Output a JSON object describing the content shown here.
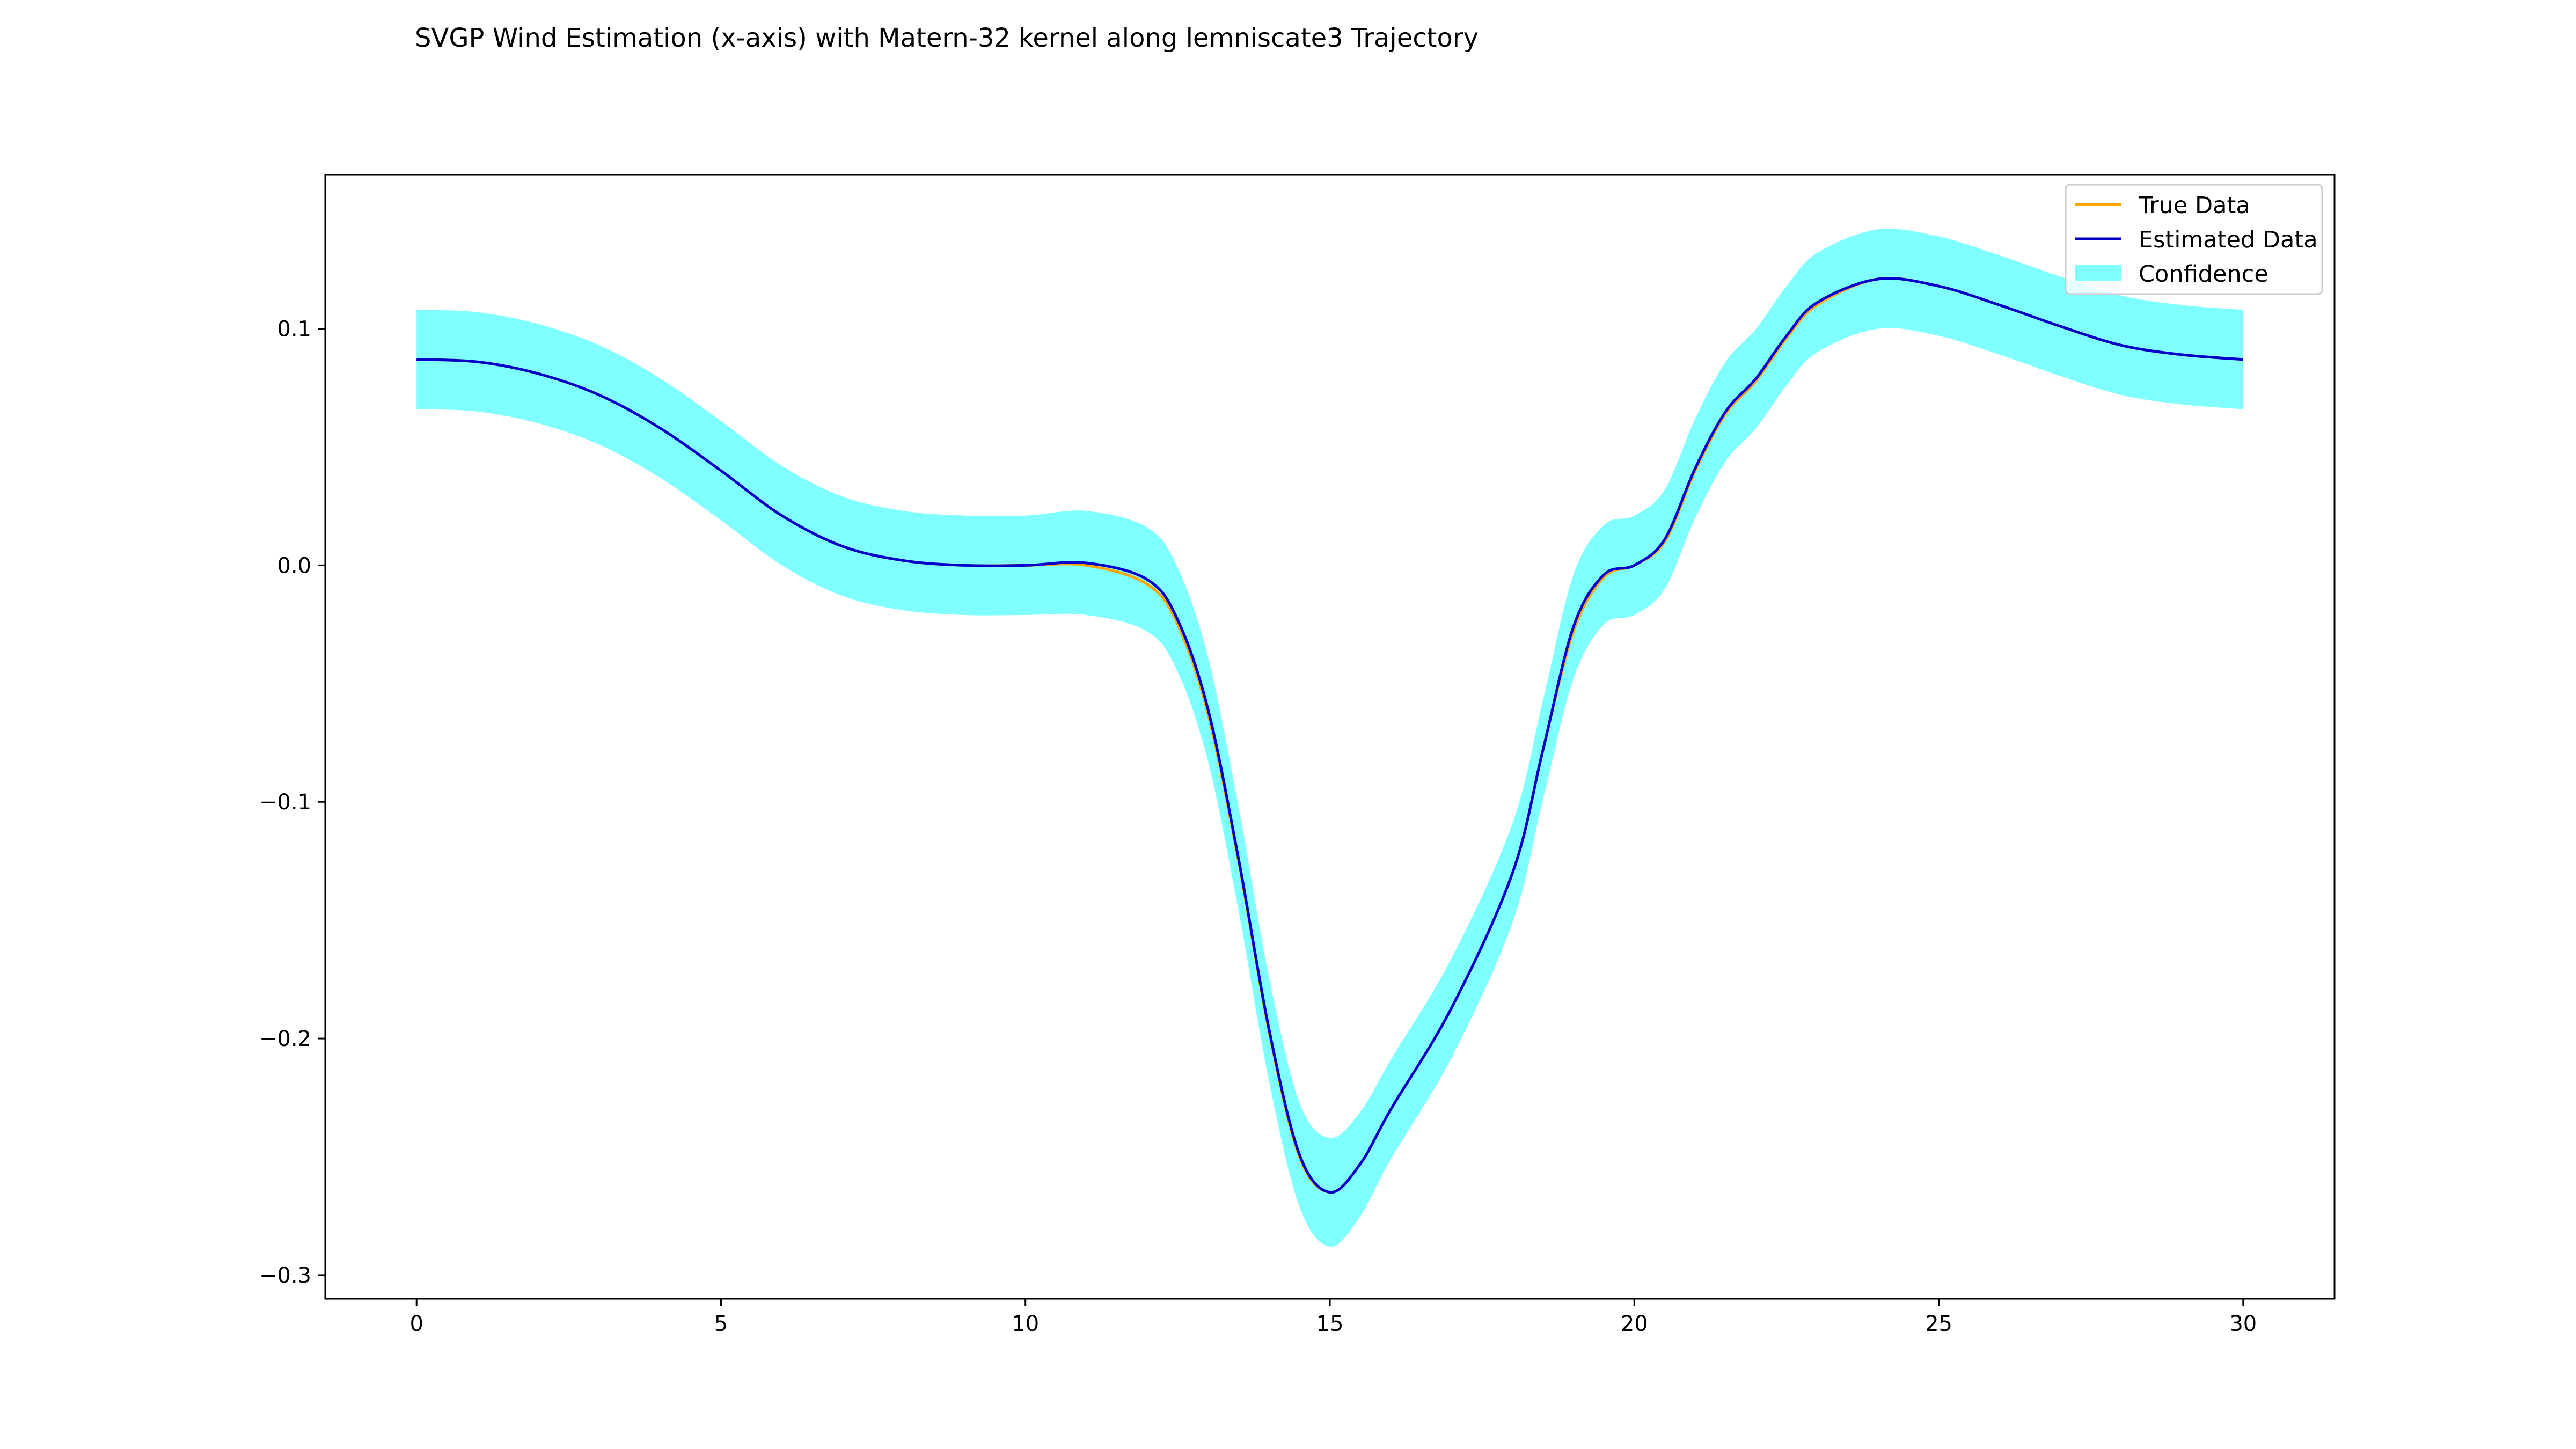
{
  "chart_data": {
    "type": "line",
    "title": "SVGP Wind Estimation (x-axis) with Matern-32 kernel along lemniscate3 Trajectory",
    "xlabel": "",
    "ylabel": "",
    "xlim": [
      -1.5,
      31.5
    ],
    "ylim": [
      -0.31,
      0.165
    ],
    "xticks": [
      0,
      5,
      10,
      15,
      20,
      25,
      30
    ],
    "xtick_labels": [
      "0",
      "5",
      "10",
      "15",
      "20",
      "25",
      "30"
    ],
    "yticks": [
      0.1,
      0.0,
      -0.1,
      -0.2,
      -0.3
    ],
    "ytick_labels": [
      "0.1",
      "0.0",
      "−0.1",
      "−0.2",
      "−0.3"
    ],
    "grid": false,
    "legend_position": "top-right",
    "x": [
      0,
      1,
      2,
      3,
      4,
      5,
      6,
      7,
      8,
      9,
      10,
      11,
      12,
      12.5,
      13,
      13.5,
      14,
      14.5,
      15,
      15.5,
      16,
      17,
      18,
      18.5,
      19,
      19.5,
      20,
      20.5,
      21,
      21.5,
      22,
      22.5,
      23,
      24,
      25,
      26,
      27,
      28,
      29,
      30
    ],
    "series": [
      {
        "name": "True Data",
        "color": "#ffa500",
        "values": [
          0.087,
          0.086,
          0.081,
          0.072,
          0.058,
          0.04,
          0.021,
          0.008,
          0.002,
          0.0,
          0.0,
          0.0,
          -0.008,
          -0.025,
          -0.063,
          -0.125,
          -0.197,
          -0.25,
          -0.265,
          -0.253,
          -0.23,
          -0.187,
          -0.13,
          -0.078,
          -0.028,
          -0.005,
          0.0,
          0.01,
          0.04,
          0.064,
          0.078,
          0.096,
          0.11,
          0.121,
          0.118,
          0.11,
          0.101,
          0.093,
          0.089,
          0.087
        ]
      },
      {
        "name": "Estimated Data",
        "color": "#0000cc",
        "values": [
          0.087,
          0.086,
          0.081,
          0.072,
          0.058,
          0.04,
          0.021,
          0.008,
          0.002,
          0.0,
          0.0,
          0.001,
          -0.006,
          -0.023,
          -0.061,
          -0.124,
          -0.196,
          -0.249,
          -0.265,
          -0.253,
          -0.23,
          -0.187,
          -0.13,
          -0.078,
          -0.026,
          -0.004,
          0.0,
          0.011,
          0.041,
          0.065,
          0.079,
          0.097,
          0.111,
          0.121,
          0.118,
          0.11,
          0.101,
          0.093,
          0.089,
          0.087
        ]
      }
    ],
    "confidence": {
      "name": "Confidence",
      "color": "#00ffff",
      "lower": [
        0.066,
        0.065,
        0.06,
        0.051,
        0.037,
        0.019,
        0.0,
        -0.013,
        -0.019,
        -0.021,
        -0.021,
        -0.021,
        -0.028,
        -0.045,
        -0.083,
        -0.146,
        -0.218,
        -0.271,
        -0.288,
        -0.275,
        -0.251,
        -0.208,
        -0.151,
        -0.099,
        -0.048,
        -0.025,
        -0.021,
        -0.01,
        0.02,
        0.044,
        0.058,
        0.076,
        0.09,
        0.1,
        0.097,
        0.089,
        0.08,
        0.072,
        0.068,
        0.066
      ],
      "upper": [
        0.108,
        0.107,
        0.102,
        0.093,
        0.079,
        0.061,
        0.042,
        0.029,
        0.023,
        0.021,
        0.021,
        0.023,
        0.016,
        -0.001,
        -0.039,
        -0.102,
        -0.174,
        -0.227,
        -0.242,
        -0.231,
        -0.209,
        -0.166,
        -0.109,
        -0.057,
        -0.004,
        0.017,
        0.021,
        0.032,
        0.062,
        0.086,
        0.1,
        0.118,
        0.132,
        0.142,
        0.139,
        0.131,
        0.122,
        0.114,
        0.11,
        0.108
      ]
    }
  }
}
